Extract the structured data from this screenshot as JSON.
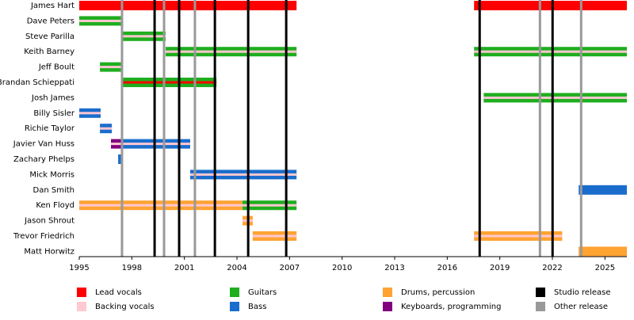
{
  "chart_data": {
    "type": "timeline",
    "xlim": [
      1995,
      2026.25
    ],
    "xticks": [
      1995,
      1998,
      2001,
      2004,
      2007,
      2010,
      2013,
      2016,
      2019,
      2022,
      2025
    ],
    "legend": [
      {
        "name": "Lead vocals",
        "color": "#ff0000"
      },
      {
        "name": "Backing vocals",
        "color": "#ffc8d2"
      },
      {
        "name": "Guitars",
        "color": "#1fae1f"
      },
      {
        "name": "Bass",
        "color": "#1a6dcc"
      },
      {
        "name": "Drums, percussion",
        "color": "#ffa333"
      },
      {
        "name": "Keyboards, programming",
        "color": "#800080"
      },
      {
        "name": "Studio release",
        "color": "#000000"
      },
      {
        "name": "Other release",
        "color": "#999999"
      }
    ],
    "studio_releases": [
      1999.3,
      2000.7,
      2002.74,
      2004.64,
      2006.81,
      2017.85,
      2022.01
    ],
    "other_releases": [
      1997.44,
      1999.84,
      2001.6,
      2021.29,
      2023.64
    ],
    "members": [
      {
        "name": "James Hart",
        "periods": [
          {
            "role": 0,
            "start": 1995,
            "end": 2007.4
          },
          {
            "role": 0,
            "start": 2017.53,
            "end": 2026.25
          }
        ]
      },
      {
        "name": "Dave Peters",
        "periods": [
          {
            "role": 2,
            "stripe": 1,
            "start": 1995,
            "end": 1997.44
          }
        ]
      },
      {
        "name": "Steve Parilla",
        "periods": [
          {
            "role": 2,
            "stripe": 1,
            "start": 1997.44,
            "end": 1999.93
          }
        ]
      },
      {
        "name": "Keith Barney",
        "periods": [
          {
            "role": 2,
            "stripe": 1,
            "start": 1999.93,
            "end": 2007.4
          },
          {
            "role": 2,
            "stripe": 1,
            "start": 2017.53,
            "end": 2026.25
          }
        ]
      },
      {
        "name": "Jeff Boult",
        "periods": [
          {
            "role": 2,
            "stripe": 1,
            "start": 1996.18,
            "end": 1997.44
          }
        ]
      },
      {
        "name": "Brandan Schieppati",
        "periods": [
          {
            "role": 2,
            "stripe": 0,
            "start": 1997.44,
            "end": 2002.83
          }
        ]
      },
      {
        "name": "Josh James",
        "periods": [
          {
            "role": 2,
            "stripe": 1,
            "start": 2018.08,
            "end": 2026.25
          }
        ]
      },
      {
        "name": "Billy Sisler",
        "periods": [
          {
            "role": 3,
            "stripe": 1,
            "start": 1995,
            "end": 1996.22
          }
        ]
      },
      {
        "name": "Richie Taylor",
        "periods": [
          {
            "role": 3,
            "stripe": 1,
            "start": 1996.18,
            "end": 1996.86
          }
        ]
      },
      {
        "name": "Javier Van Huss",
        "periods": [
          {
            "role": 5,
            "stripe": 1,
            "start": 1996.81,
            "end": 1997.4
          },
          {
            "role": 3,
            "stripe": 1,
            "start": 1997.4,
            "end": 2001.33
          }
        ]
      },
      {
        "name": "Zachary Phelps",
        "periods": [
          {
            "role": 3,
            "start": 1997.22,
            "end": 1997.4
          }
        ]
      },
      {
        "name": "Mick Morris",
        "periods": [
          {
            "role": 3,
            "stripe": 1,
            "start": 2001.33,
            "end": 2007.4
          }
        ]
      },
      {
        "name": "Dan Smith",
        "periods": [
          {
            "role": 3,
            "start": 2023.5,
            "end": 2026.25
          }
        ]
      },
      {
        "name": "Ken Floyd",
        "periods": [
          {
            "role": 4,
            "stripe": 1,
            "start": 1995,
            "end": 2004.32
          },
          {
            "role": 2,
            "stripe": 1,
            "start": 2004.32,
            "end": 2007.4
          }
        ]
      },
      {
        "name": "Jason Shrout",
        "periods": [
          {
            "role": 4,
            "stripe": 1,
            "start": 2004.32,
            "end": 2004.9
          }
        ]
      },
      {
        "name": "Trevor Friedrich",
        "periods": [
          {
            "role": 4,
            "stripe": 1,
            "start": 2004.9,
            "end": 2007.4
          },
          {
            "role": 4,
            "stripe": 1,
            "start": 2017.53,
            "end": 2022.56
          }
        ]
      },
      {
        "name": "Matt Horwitz",
        "periods": [
          {
            "role": 4,
            "start": 2023.5,
            "end": 2026.25
          }
        ]
      }
    ]
  }
}
